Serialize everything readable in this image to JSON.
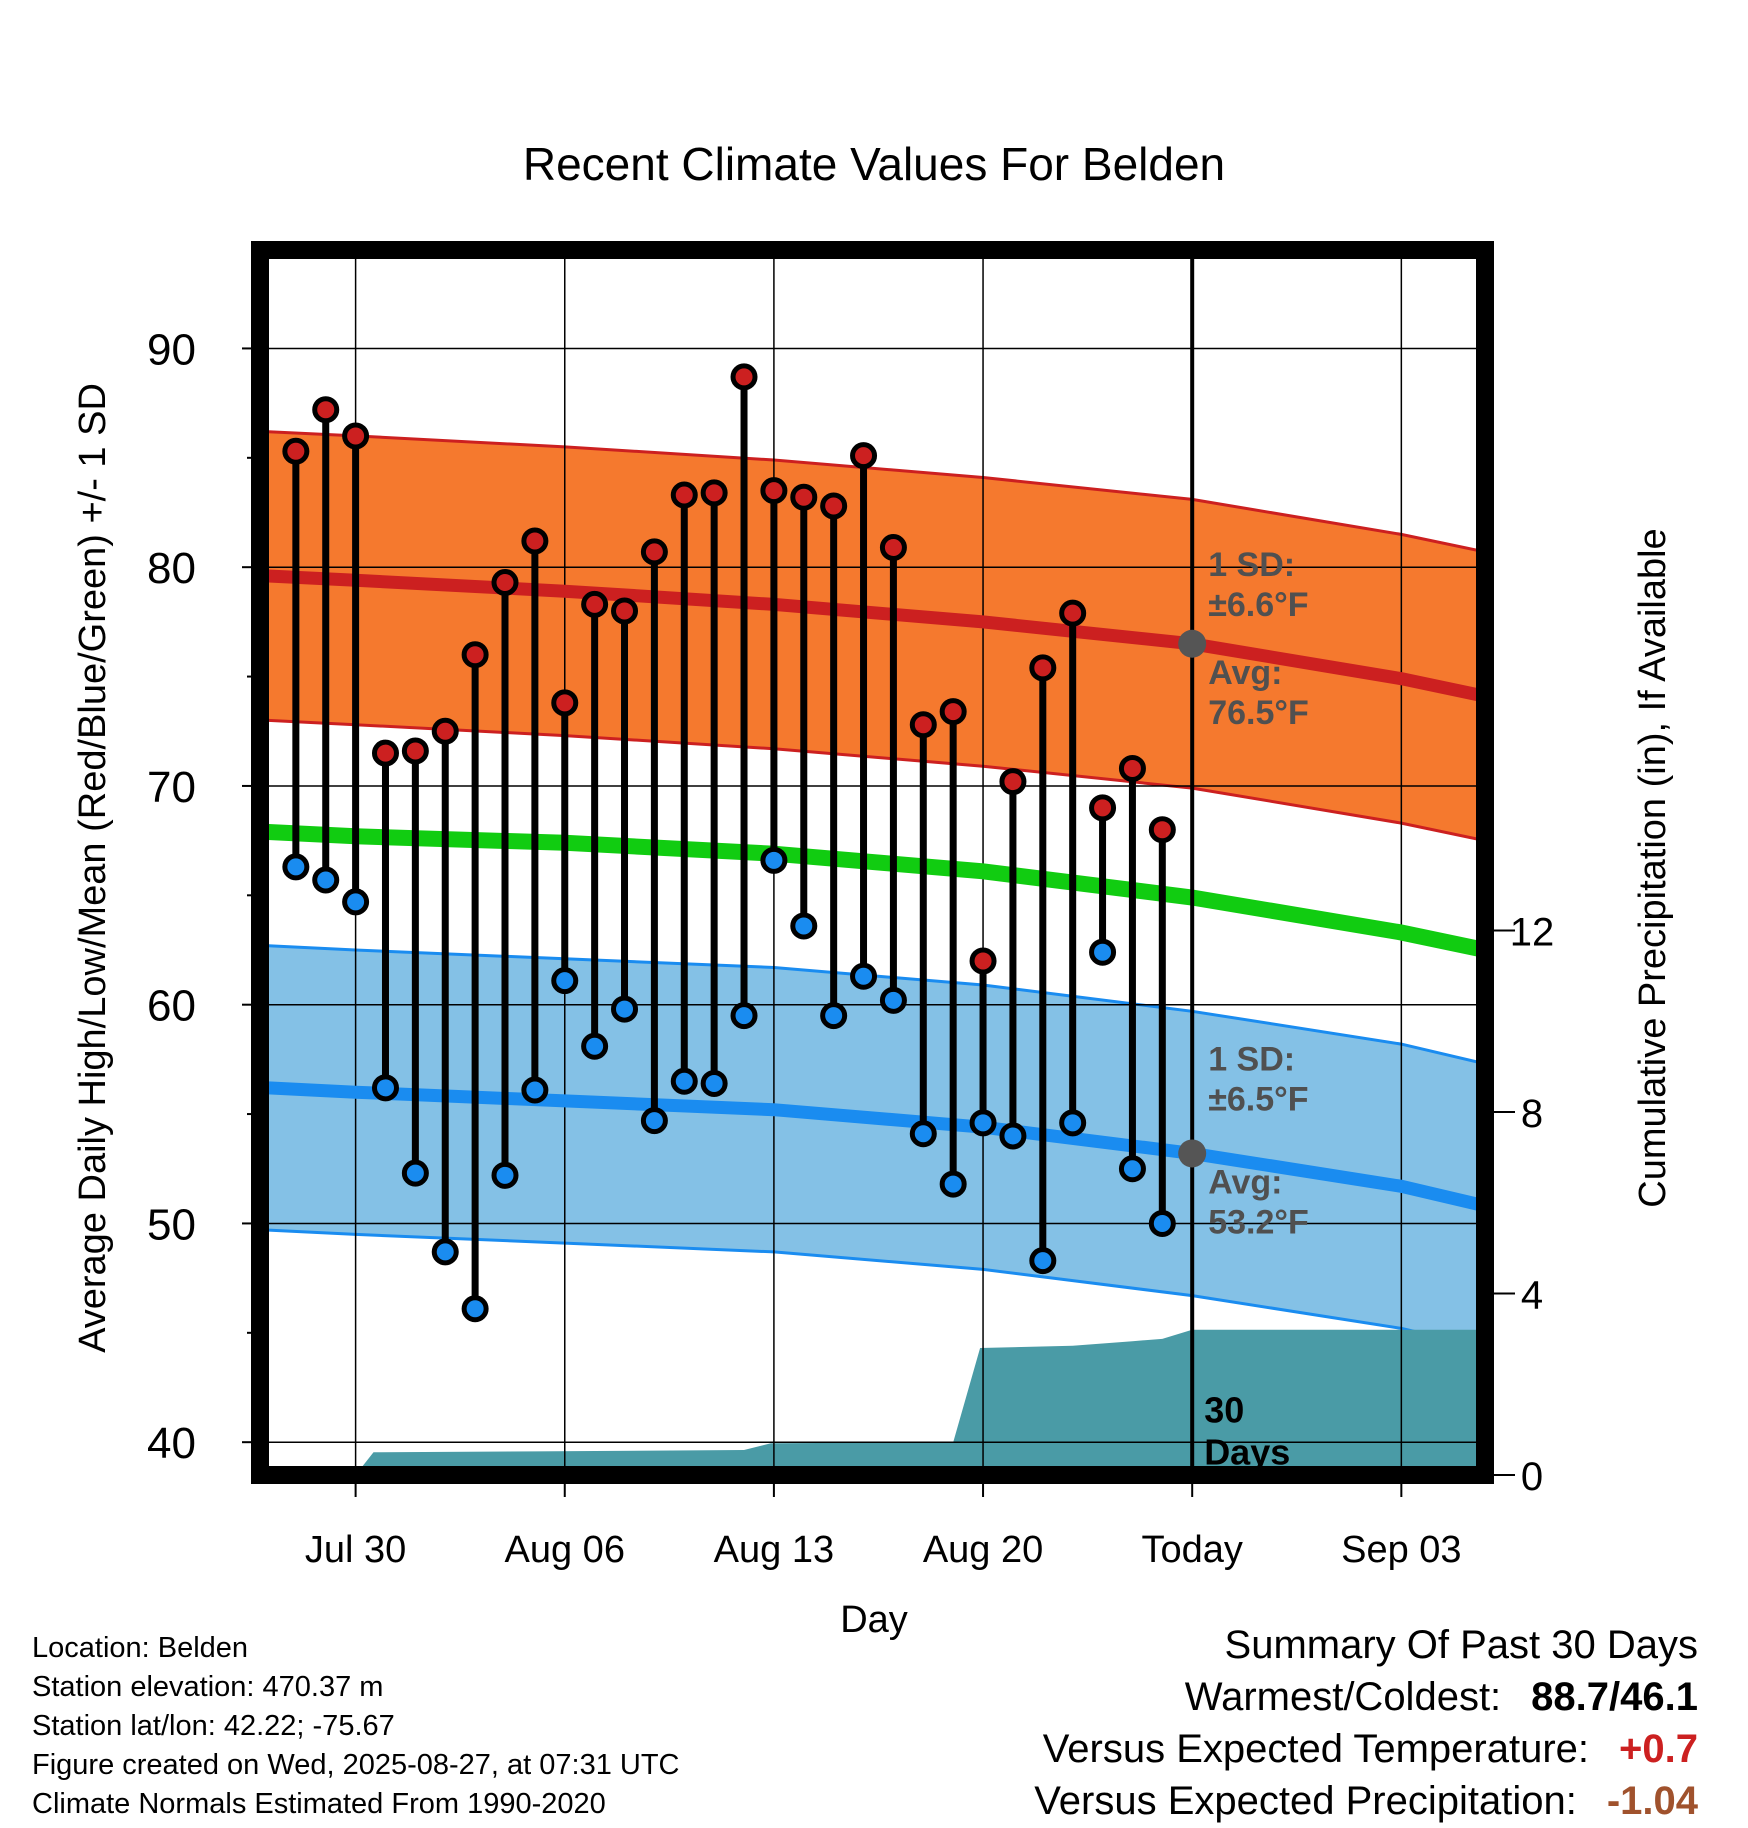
{
  "chart_data": {
    "type": "line",
    "title": "Recent Climate Values For Belden",
    "xlabel": "Day",
    "ylabel_left": "Average Daily High/Low/Mean (Red/Blue/Green) +/- 1 SD",
    "ylabel_right": "Cumulative Precipitation (in), If Available",
    "x_ticks": [
      {
        "day": 0,
        "label": "Jul 30"
      },
      {
        "day": 7,
        "label": "Aug 06"
      },
      {
        "day": 14,
        "label": "Aug 13"
      },
      {
        "day": 21,
        "label": "Aug 20"
      },
      {
        "day": 28,
        "label": "Today"
      },
      {
        "day": 35,
        "label": "Sep 03"
      }
    ],
    "x_range": [
      -3.2,
      37.8
    ],
    "ylim_left": [
      38.5,
      94.5
    ],
    "y_ticks_left": [
      40,
      50,
      60,
      70,
      80,
      90
    ],
    "ylim_right": [
      0,
      27
    ],
    "y_ticks_right": [
      0,
      4,
      8,
      12
    ],
    "today_day": 28,
    "colors": {
      "high": "#cc2020",
      "high_band": "#f5792e",
      "low": "#1a8cf0",
      "low_band": "#84c1e6",
      "mean": "#11cc11",
      "precip": "#4a9ba6",
      "avg_marker": "#555555",
      "positive": "#cc2020",
      "negative": "#a0522d"
    },
    "normals": {
      "days": [
        -3,
        0,
        7,
        14,
        21,
        28,
        35,
        37.8
      ],
      "high_avg": [
        79.6,
        79.4,
        78.9,
        78.3,
        77.5,
        76.5,
        74.9,
        74.1
      ],
      "high_sd": 6.6,
      "low_avg": [
        56.2,
        56.0,
        55.6,
        55.2,
        54.4,
        53.2,
        51.7,
        50.8
      ],
      "low_sd": 6.5,
      "mean_avg": [
        67.9,
        67.7,
        67.4,
        66.9,
        66.1,
        64.9,
        63.3,
        62.5
      ]
    },
    "series": [
      {
        "name": "Daily High",
        "days": [
          -2,
          -1,
          0,
          1,
          2,
          3,
          4,
          5,
          6,
          7,
          8,
          9,
          10,
          11,
          12,
          13,
          14,
          15,
          16,
          17,
          18,
          19,
          20,
          21,
          22,
          23,
          24,
          25,
          26,
          27
        ],
        "values": [
          85.3,
          87.2,
          86.0,
          71.5,
          71.6,
          72.5,
          76.0,
          79.3,
          81.2,
          73.8,
          78.3,
          78.0,
          80.7,
          83.3,
          83.4,
          88.7,
          83.5,
          83.2,
          82.8,
          85.1,
          80.9,
          72.8,
          73.4,
          62.0,
          70.2,
          75.4,
          77.9,
          69.0,
          70.8,
          68.0
        ]
      },
      {
        "name": "Daily Low",
        "days": [
          -2,
          -1,
          0,
          1,
          2,
          3,
          4,
          5,
          6,
          7,
          8,
          9,
          10,
          11,
          12,
          13,
          14,
          15,
          16,
          17,
          18,
          19,
          20,
          21,
          22,
          23,
          24,
          25,
          26,
          27
        ],
        "values": [
          66.3,
          65.7,
          64.7,
          56.2,
          52.3,
          48.7,
          46.1,
          52.2,
          56.1,
          61.1,
          58.1,
          59.8,
          54.7,
          56.5,
          56.4,
          59.5,
          66.6,
          63.6,
          59.5,
          61.3,
          60.2,
          54.1,
          51.8,
          54.6,
          54.0,
          48.3,
          54.6,
          62.4,
          52.5,
          50.0
        ]
      },
      {
        "name": "Cumulative Precipitation",
        "days": [
          0,
          0.6,
          6,
          13,
          13.9,
          20,
          20.9,
          24,
          26,
          27,
          28,
          37.8
        ],
        "values": [
          0,
          0.5,
          0.52,
          0.55,
          0.7,
          0.72,
          2.8,
          2.85,
          2.95,
          3.0,
          3.2,
          3.2
        ]
      }
    ],
    "annotations": {
      "high_sd": "1 SD:",
      "high_sd_val": "±6.6°F",
      "high_avg": "Avg:",
      "high_avg_val": "76.5°F",
      "low_sd": "1 SD:",
      "low_sd_val": "±6.5°F",
      "low_avg": "Avg:",
      "low_avg_val": "53.2°F",
      "days_num": "30",
      "days_word": "Days"
    }
  },
  "info": {
    "location": "Location: Belden",
    "elevation": "Station elevation: 470.37 m",
    "latlon": "Station lat/lon: 42.22; -75.67",
    "created": "Figure created on Wed, 2025-08-27, at 07:31 UTC",
    "normals": "Climate Normals Estimated From 1990-2020"
  },
  "summary": {
    "title": "Summary Of Past 30 Days",
    "warmest_label": "Warmest/Coldest:",
    "warmest_value": "88.7/46.1",
    "temp_label": "Versus Expected Temperature:",
    "temp_value": "+0.7",
    "precip_label": "Versus Expected Precipitation:",
    "precip_value": "-1.04"
  }
}
